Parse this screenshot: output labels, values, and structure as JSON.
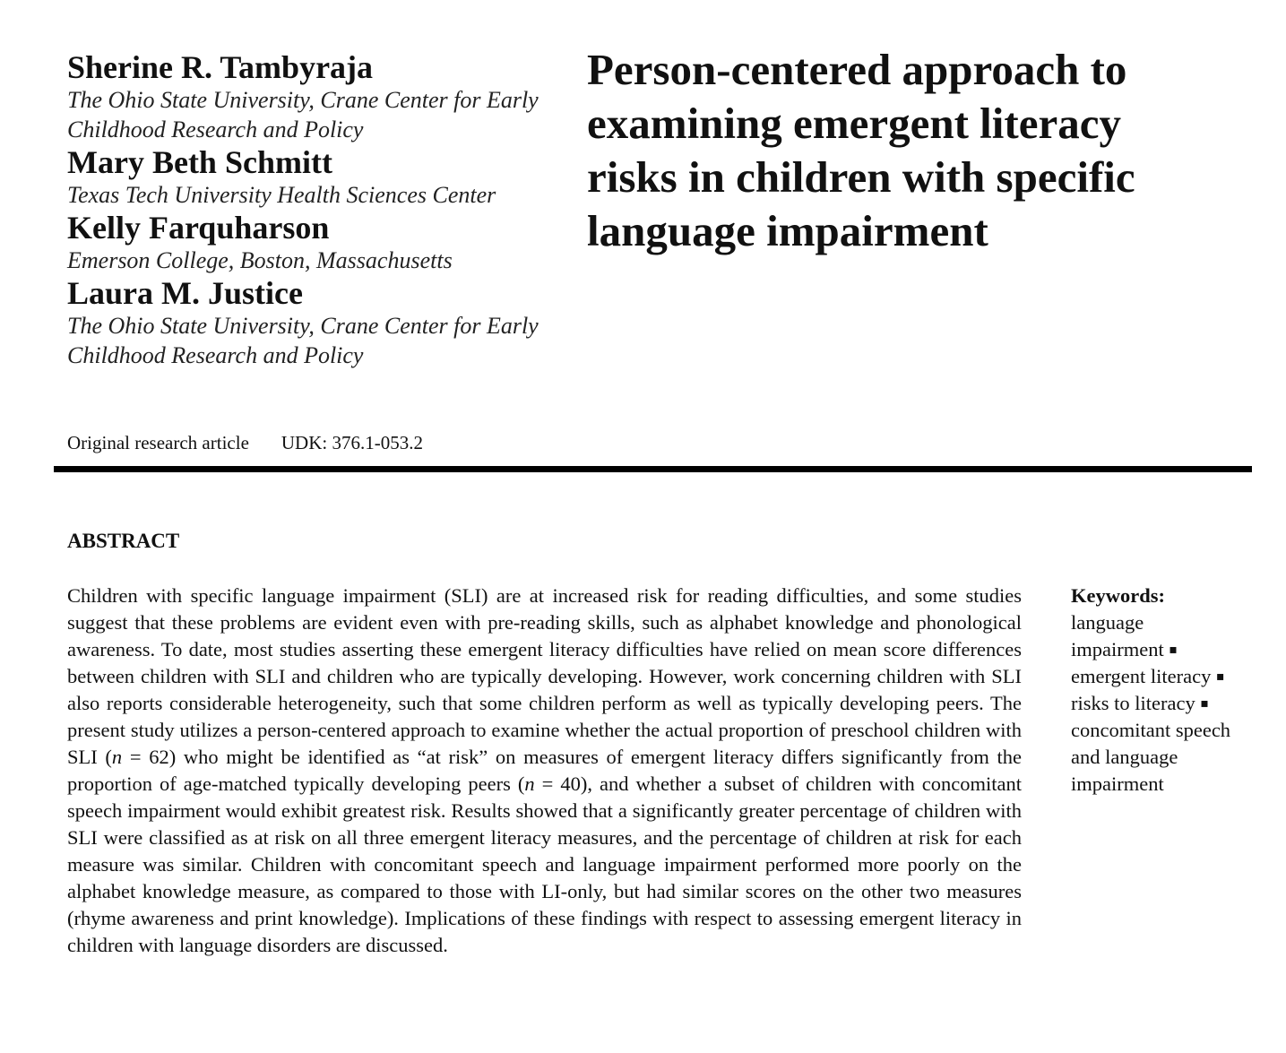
{
  "authors": [
    {
      "name": "Sherine R. Tambyraja",
      "affiliation_lines": [
        "The Ohio State University, Crane Center for Early",
        "Childhood Research and Policy"
      ]
    },
    {
      "name": "Mary Beth Schmitt",
      "affiliation_lines": [
        "Texas Tech University Health Sciences Center"
      ]
    },
    {
      "name": "Kelly Farquharson",
      "affiliation_lines": [
        "Emerson College, Boston, Massachusetts"
      ]
    },
    {
      "name": "Laura M. Justice",
      "affiliation_lines": [
        "The Ohio State University, Crane Center for Early",
        "Childhood Research and Policy"
      ]
    }
  ],
  "title_lines": [
    "Person-centered approach to",
    "examining emergent literacy",
    "risks in children with specific",
    "language impairment"
  ],
  "meta": {
    "article_type": "Original research article",
    "udk": "UDK: 376.1-053.2"
  },
  "abstract": {
    "heading": "ABSTRACT",
    "part1": "Children with specific language impairment (SLI) are at increased risk for reading difficulties, and some studies suggest that these problems are evident even with pre-reading skills, such as alphabet knowledge and phonological awareness. To date, most studies asserting these emergent literacy difficulties have relied on mean score differences between children with SLI and children who are typically developing.  However, work concerning children with SLI also reports considerable heterogeneity, such that some children perform as well as typically developing peers. The present study utilizes a person-centered approach to examine whether the actual proportion of preschool children with SLI (",
    "n1_symbol": "n",
    "part2": " = 62) who might be identified as “at risk” on measures of emergent literacy differs significantly from the proportion of age-matched typically developing peers (",
    "n2_symbol": "n",
    "part3": " = 40), and whether a subset of children with concomitant speech impairment would exhibit greatest risk.  Results showed that a significantly greater percentage of children with SLI were classified as at risk on all three emergent literacy measures, and the percentage of children at risk for each measure was similar. Children with concomitant speech and language impairment performed more poorly on the alphabet knowledge measure, as compared to those with LI-only, but had similar scores on the other two measures (rhyme awareness and print knowledge).  Implications of these findings with respect to assessing emergent literacy in children with language disorders are discussed."
  },
  "keywords": {
    "heading": "Keywords:",
    "items": [
      "language impairment",
      "emergent literacy",
      "risks to literacy",
      "concomitant speech and language impairment"
    ],
    "separator": "▪"
  }
}
